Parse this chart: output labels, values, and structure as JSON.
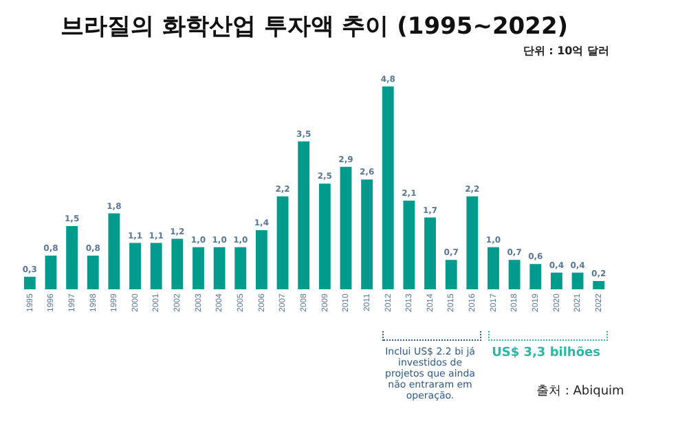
{
  "chart_data": {
    "type": "bar",
    "title": "브라질의 화학산업 투자액 추이 (1995~2022)",
    "subtitle": "단위 : 10억 달러",
    "categories": [
      "1995",
      "1996",
      "1997",
      "1998",
      "1999",
      "2000",
      "2001",
      "2002",
      "2003",
      "2004",
      "2005",
      "2006",
      "2007",
      "2008",
      "2009",
      "2010",
      "2011",
      "2012",
      "2013",
      "2014",
      "2015",
      "2016",
      "2017",
      "2018",
      "2019",
      "2020",
      "2021",
      "2022"
    ],
    "values": [
      0.3,
      0.8,
      1.5,
      0.8,
      1.8,
      1.1,
      1.1,
      1.2,
      1.0,
      1.0,
      1.0,
      1.4,
      2.2,
      3.5,
      2.5,
      2.9,
      2.6,
      4.8,
      2.1,
      1.7,
      0.7,
      2.2,
      1.0,
      0.7,
      0.6,
      0.4,
      0.4,
      0.2
    ],
    "value_labels": [
      "0,3",
      "0,8",
      "1,5",
      "0,8",
      "1,8",
      "1,1",
      "1,1",
      "1,2",
      "1,0",
      "1,0",
      "1,0",
      "1,4",
      "2,2",
      "3,5",
      "2,5",
      "2,9",
      "2,6",
      "4,8",
      "2,1",
      "1,7",
      "0,7",
      "2,2",
      "1,0",
      "0,7",
      "0,6",
      "0,4",
      "0,4",
      "0,2"
    ],
    "color": "#009b8c",
    "tick_labels": "x",
    "grid": false,
    "legend": false,
    "annotations": [
      "Inclui US$ 2.2 bi já investidos de projetos que ainda não entraram em operação.",
      "US$ 3,3 bilhões",
      "출처 : Abiquim"
    ]
  }
}
